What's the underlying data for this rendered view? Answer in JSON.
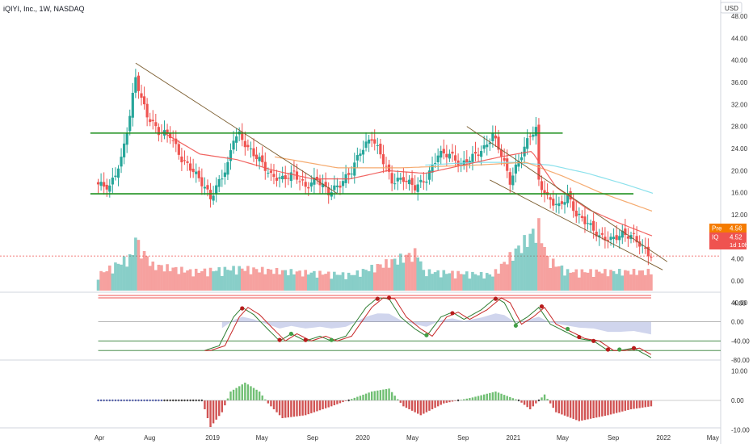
{
  "header": {
    "title": "iQIYI, Inc., 1W, NASDAQ",
    "currency": "USD"
  },
  "price_tags": {
    "pre": {
      "label": "Pre",
      "value": "4.56",
      "color": "#f57c00"
    },
    "last": {
      "label": "IQ",
      "value": "4.52",
      "countdown": "1d 10h",
      "color": "#ef5350"
    }
  },
  "colors": {
    "up": "#26a69a",
    "down": "#ef5350",
    "trend": "#7a5c2e",
    "support": "#1b8f1b"
  },
  "chart_data": [
    {
      "type": "candlestick",
      "title": "iQIYI, Inc., 1W, NASDAQ",
      "x_range": [
        "2018-03-26",
        "2022-05-20"
      ],
      "ylim": [
        0,
        48
      ],
      "yticks": [
        "48.00",
        "44.00",
        "40.00",
        "36.00",
        "32.00",
        "28.00",
        "24.00",
        "20.00",
        "16.00",
        "12.00",
        "8.00",
        "4.00",
        "0.00",
        "-4.00"
      ],
      "xticks": [
        "Apr",
        "Aug",
        "2019",
        "May",
        "Sep",
        "2020",
        "May",
        "Sep",
        "2021",
        "May",
        "Sep",
        "2022",
        "May"
      ],
      "xtick_dates": [
        "2018-04-01",
        "2018-08-01",
        "2019-01-01",
        "2019-05-01",
        "2019-09-01",
        "2020-01-01",
        "2020-05-01",
        "2020-09-01",
        "2021-01-01",
        "2021-05-01",
        "2021-09-01",
        "2022-01-01",
        "2022-05-01"
      ],
      "price_anchors": [
        [
          "2018-03-29",
          17.5
        ],
        [
          "2018-04-26",
          17
        ],
        [
          "2018-05-24",
          22
        ],
        [
          "2018-06-14",
          30
        ],
        [
          "2018-06-28",
          37
        ],
        [
          "2018-07-12",
          33
        ],
        [
          "2018-07-26",
          30
        ],
        [
          "2018-08-23",
          27
        ],
        [
          "2018-09-20",
          26.5
        ],
        [
          "2018-10-18",
          22
        ],
        [
          "2018-11-15",
          20
        ],
        [
          "2018-12-13",
          17
        ],
        [
          "2018-12-27",
          15
        ],
        [
          "2019-01-17",
          18
        ],
        [
          "2019-02-07",
          21
        ],
        [
          "2019-02-21",
          26
        ],
        [
          "2019-03-07",
          26.5
        ],
        [
          "2019-03-28",
          24
        ],
        [
          "2019-04-25",
          22
        ],
        [
          "2019-05-23",
          19
        ],
        [
          "2019-06-20",
          18.5
        ],
        [
          "2019-07-18",
          19.5
        ],
        [
          "2019-08-15",
          17
        ],
        [
          "2019-09-12",
          18.5
        ],
        [
          "2019-10-10",
          16
        ],
        [
          "2019-11-07",
          17.5
        ],
        [
          "2019-12-05",
          20
        ],
        [
          "2019-12-26",
          23.5
        ],
        [
          "2020-01-23",
          26
        ],
        [
          "2020-02-13",
          23
        ],
        [
          "2020-03-12",
          18
        ],
        [
          "2020-04-09",
          18.5
        ],
        [
          "2020-05-07",
          17
        ],
        [
          "2020-06-04",
          18.5
        ],
        [
          "2020-07-02",
          23
        ],
        [
          "2020-07-30",
          23
        ],
        [
          "2020-08-27",
          21
        ],
        [
          "2020-09-24",
          22.5
        ],
        [
          "2020-10-22",
          24
        ],
        [
          "2020-11-12",
          26.5
        ],
        [
          "2020-12-03",
          23
        ],
        [
          "2020-12-24",
          18
        ],
        [
          "2021-01-21",
          23
        ],
        [
          "2021-02-11",
          26.5
        ],
        [
          "2021-02-25",
          27.5
        ],
        [
          "2021-03-04",
          18
        ],
        [
          "2021-03-25",
          15
        ],
        [
          "2021-04-22",
          13.5
        ],
        [
          "2021-05-13",
          15.5
        ],
        [
          "2021-06-03",
          12
        ],
        [
          "2021-07-01",
          10.5
        ],
        [
          "2021-07-29",
          8
        ],
        [
          "2021-08-26",
          7.5
        ],
        [
          "2021-09-23",
          8.5
        ],
        [
          "2021-10-21",
          8
        ],
        [
          "2021-11-11",
          6
        ],
        [
          "2021-12-02",
          4.52
        ]
      ],
      "support_lines": [
        {
          "from": [
            "2018-03-10",
            26.8
          ],
          "to": [
            "2021-05-01",
            26.8
          ]
        },
        {
          "from": [
            "2018-03-10",
            15.8
          ],
          "to": [
            "2021-10-20",
            15.8
          ]
        }
      ],
      "trend_lines": [
        {
          "from": [
            "2018-06-28",
            39.5
          ],
          "to": [
            "2019-11-01",
            15.8
          ]
        },
        {
          "from": [
            "2020-09-10",
            28
          ],
          "to": [
            "2022-01-10",
            3.5
          ]
        },
        {
          "from": [
            "2020-11-05",
            18.3
          ],
          "to": [
            "2021-12-30",
            2
          ]
        }
      ],
      "moving_averages": [
        {
          "color": "#80deea",
          "anchors": [
            [
              "2020-06-01",
              21
            ],
            [
              "2020-10-01",
              21.5
            ],
            [
              "2021-01-01",
              21.5
            ],
            [
              "2021-04-01",
              21
            ],
            [
              "2021-07-01",
              19.5
            ],
            [
              "2021-10-01",
              17.5
            ],
            [
              "2021-12-10",
              15.8
            ]
          ]
        },
        {
          "color": "#f4a261",
          "anchors": [
            [
              "2019-06-01",
              22.5
            ],
            [
              "2019-11-01",
              20.5
            ],
            [
              "2020-04-01",
              20.5
            ],
            [
              "2020-10-01",
              21
            ],
            [
              "2021-02-01",
              21.5
            ],
            [
              "2021-05-01",
              19
            ],
            [
              "2021-08-01",
              16
            ],
            [
              "2021-10-15",
              14
            ],
            [
              "2021-12-10",
              12.5
            ]
          ]
        },
        {
          "color": "#ef5350",
          "anchors": [
            [
              "2018-09-01",
              27
            ],
            [
              "2018-12-01",
              23
            ],
            [
              "2019-03-01",
              22
            ],
            [
              "2019-06-01",
              20
            ],
            [
              "2019-09-01",
              18.5
            ],
            [
              "2019-12-01",
              18.5
            ],
            [
              "2020-03-01",
              20
            ],
            [
              "2020-06-01",
              19.5
            ],
            [
              "2020-09-01",
              21
            ],
            [
              "2020-12-01",
              22.5
            ],
            [
              "2021-02-15",
              23.5
            ],
            [
              "2021-04-15",
              17
            ],
            [
              "2021-07-01",
              13
            ],
            [
              "2021-09-15",
              10.5
            ],
            [
              "2021-12-10",
              8
            ]
          ]
        }
      ],
      "volume_anchors": [
        [
          "2018-03-29",
          0.25
        ],
        [
          "2018-06-21",
          0.55
        ],
        [
          "2018-06-28",
          0.95
        ],
        [
          "2018-07-05",
          0.7
        ],
        [
          "2018-08-09",
          0.4
        ],
        [
          "2018-11-15",
          0.3
        ],
        [
          "2019-03-07",
          0.35
        ],
        [
          "2019-07-04",
          0.3
        ],
        [
          "2019-12-05",
          0.25
        ],
        [
          "2020-05-14",
          0.6
        ],
        [
          "2020-05-28",
          0.3
        ],
        [
          "2020-11-12",
          0.25
        ],
        [
          "2021-03-04",
          1.0
        ],
        [
          "2021-03-11",
          0.85
        ],
        [
          "2021-03-25",
          0.5
        ],
        [
          "2021-05-13",
          0.3
        ],
        [
          "2021-12-02",
          0.3
        ]
      ]
    },
    {
      "type": "line",
      "name": "stochastic",
      "ylim": [
        -90,
        60
      ],
      "yticks": [
        "40.00",
        "0.00",
        "-40.00",
        "-80.00"
      ],
      "levels": [
        {
          "value": 0,
          "color": "#9e9e9e"
        },
        {
          "value": -40,
          "color": "#2e7d32"
        },
        {
          "value": -60,
          "color": "#2e7d32"
        }
      ],
      "fast_anchors": [
        [
          "2018-12-13",
          -60
        ],
        [
          "2019-01-17",
          -50
        ],
        [
          "2019-02-21",
          10
        ],
        [
          "2019-03-14",
          30
        ],
        [
          "2019-04-11",
          15
        ],
        [
          "2019-05-09",
          -10
        ],
        [
          "2019-06-13",
          -40
        ],
        [
          "2019-07-11",
          -25
        ],
        [
          "2019-08-15",
          -40
        ],
        [
          "2019-09-19",
          -30
        ],
        [
          "2019-10-17",
          -40
        ],
        [
          "2019-11-21",
          -30
        ],
        [
          "2020-01-09",
          30
        ],
        [
          "2020-02-06",
          50
        ],
        [
          "2020-03-05",
          48
        ],
        [
          "2020-04-02",
          10
        ],
        [
          "2020-05-07",
          -15
        ],
        [
          "2020-06-04",
          -30
        ],
        [
          "2020-07-09",
          10
        ],
        [
          "2020-08-06",
          20
        ],
        [
          "2020-09-03",
          5
        ],
        [
          "2020-10-15",
          25
        ],
        [
          "2020-11-19",
          50
        ],
        [
          "2020-12-10",
          40
        ],
        [
          "2021-01-07",
          -5
        ],
        [
          "2021-02-04",
          10
        ],
        [
          "2021-03-04",
          30
        ],
        [
          "2021-04-01",
          -5
        ],
        [
          "2021-05-06",
          -20
        ],
        [
          "2021-06-10",
          -35
        ],
        [
          "2021-07-15",
          -40
        ],
        [
          "2021-08-19",
          -60
        ],
        [
          "2021-09-16",
          -60
        ],
        [
          "2021-10-21",
          -55
        ],
        [
          "2021-12-02",
          -75
        ]
      ],
      "dots": [
        [
          "2019-03-14",
          28,
          "d"
        ],
        [
          "2019-06-13",
          -38,
          "d"
        ],
        [
          "2019-07-11",
          -25,
          "u"
        ],
        [
          "2019-08-15",
          -38,
          "d"
        ],
        [
          "2019-10-17",
          -38,
          "u"
        ],
        [
          "2020-02-06",
          48,
          "d"
        ],
        [
          "2020-03-05",
          50,
          "d"
        ],
        [
          "2020-06-04",
          -28,
          "u"
        ],
        [
          "2020-08-06",
          18,
          "d"
        ],
        [
          "2020-11-19",
          48,
          "d"
        ],
        [
          "2021-01-07",
          -8,
          "u"
        ],
        [
          "2021-03-11",
          32,
          "d"
        ],
        [
          "2021-05-13",
          -15,
          "u"
        ],
        [
          "2021-06-10",
          -32,
          "d"
        ],
        [
          "2021-07-15",
          -40,
          "d"
        ],
        [
          "2021-08-19",
          -58,
          "d"
        ],
        [
          "2021-09-16",
          -58,
          "u"
        ],
        [
          "2021-10-21",
          -55,
          "d"
        ]
      ]
    },
    {
      "type": "bar",
      "name": "momentum-histogram",
      "ylim": [
        -12,
        12
      ],
      "yticks": [
        "10.00",
        "0.00",
        "-10.00"
      ],
      "anchors": [
        [
          "2018-03-29",
          0
        ],
        [
          "2018-12-06",
          0
        ],
        [
          "2018-12-27",
          -9
        ],
        [
          "2019-01-24",
          -4
        ],
        [
          "2019-02-14",
          3
        ],
        [
          "2019-03-21",
          6
        ],
        [
          "2019-04-25",
          3
        ],
        [
          "2019-05-16",
          -1
        ],
        [
          "2019-06-20",
          -6
        ],
        [
          "2019-08-15",
          -5
        ],
        [
          "2019-10-17",
          -2
        ],
        [
          "2019-12-05",
          0.5
        ],
        [
          "2020-01-23",
          3
        ],
        [
          "2020-03-05",
          4
        ],
        [
          "2020-04-09",
          -2
        ],
        [
          "2020-05-21",
          -5
        ],
        [
          "2020-07-16",
          -1
        ],
        [
          "2020-09-24",
          1
        ],
        [
          "2020-11-19",
          3
        ],
        [
          "2021-01-14",
          0
        ],
        [
          "2021-02-11",
          -3
        ],
        [
          "2021-03-18",
          2
        ],
        [
          "2021-04-15",
          -4
        ],
        [
          "2021-06-10",
          -7
        ],
        [
          "2021-08-19",
          -5
        ],
        [
          "2021-10-14",
          -3
        ],
        [
          "2021-12-02",
          -2
        ]
      ]
    }
  ]
}
